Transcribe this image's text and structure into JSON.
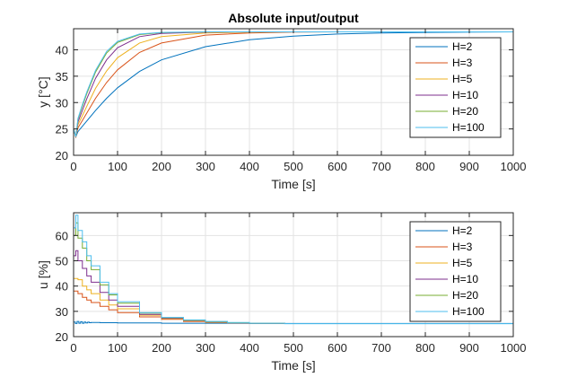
{
  "chart_data": [
    {
      "type": "line",
      "title": "Absolute input/output",
      "xlabel": "Time [s]",
      "ylabel": "y [°C]",
      "xlim": [
        0,
        1000
      ],
      "ylim": [
        20,
        44
      ],
      "xticks": [
        0,
        100,
        200,
        300,
        400,
        500,
        600,
        700,
        800,
        900,
        1000
      ],
      "yticks": [
        20,
        25,
        30,
        35,
        40
      ],
      "grid": true,
      "legend_position": "top-right",
      "series": [
        {
          "name": "H=2",
          "color": "#0072BD",
          "x": [
            0,
            5,
            10,
            20,
            30,
            50,
            75,
            100,
            150,
            200,
            300,
            400,
            500,
            600,
            700,
            800,
            900,
            1000
          ],
          "values": [
            25,
            23.5,
            24.5,
            25.5,
            26.5,
            28.5,
            30.8,
            32.8,
            35.9,
            38.1,
            40.6,
            41.9,
            42.6,
            43.0,
            43.2,
            43.3,
            43.35,
            43.4
          ]
        },
        {
          "name": "H=3",
          "color": "#D95319",
          "x": [
            0,
            5,
            10,
            20,
            30,
            50,
            75,
            100,
            150,
            200,
            300,
            400,
            500,
            600,
            1000
          ],
          "values": [
            25,
            23.5,
            25.2,
            26.6,
            28.0,
            30.8,
            33.8,
            36.2,
            39.5,
            41.3,
            42.8,
            43.2,
            43.35,
            43.4,
            43.4
          ]
        },
        {
          "name": "H=5",
          "color": "#EDB120",
          "x": [
            0,
            5,
            10,
            20,
            30,
            50,
            75,
            100,
            150,
            200,
            300,
            400,
            500,
            1000
          ],
          "values": [
            25,
            23.5,
            25.8,
            27.5,
            29.3,
            32.7,
            36.0,
            38.5,
            41.3,
            42.5,
            43.2,
            43.35,
            43.4,
            43.4
          ]
        },
        {
          "name": "H=10",
          "color": "#7E2F8E",
          "x": [
            0,
            5,
            10,
            20,
            30,
            50,
            75,
            100,
            150,
            200,
            300,
            400,
            1000
          ],
          "values": [
            25,
            23.5,
            26.3,
            28.5,
            30.7,
            34.6,
            38.1,
            40.4,
            42.5,
            43.1,
            43.35,
            43.4,
            43.4
          ]
        },
        {
          "name": "H=20",
          "color": "#77AC30",
          "x": [
            0,
            5,
            10,
            20,
            30,
            50,
            75,
            100,
            150,
            200,
            300,
            1000
          ],
          "values": [
            25,
            23.5,
            26.8,
            29.3,
            31.7,
            35.8,
            39.4,
            41.4,
            42.9,
            43.25,
            43.4,
            43.4
          ]
        },
        {
          "name": "H=100",
          "color": "#4DBEEE",
          "x": [
            0,
            5,
            10,
            20,
            30,
            50,
            75,
            100,
            150,
            200,
            300,
            1000
          ],
          "values": [
            25,
            23.5,
            27.0,
            29.6,
            32.0,
            36.1,
            39.7,
            41.6,
            43.0,
            43.3,
            43.4,
            43.4
          ]
        }
      ]
    },
    {
      "type": "line",
      "title": "",
      "xlabel": "Time [s]",
      "ylabel": "u [%]",
      "xlim": [
        0,
        1000
      ],
      "ylim": [
        20,
        69
      ],
      "xticks": [
        0,
        100,
        200,
        300,
        400,
        500,
        600,
        700,
        800,
        900,
        1000
      ],
      "yticks": [
        20,
        30,
        40,
        50,
        60
      ],
      "grid": true,
      "legend_position": "top-right",
      "series": [
        {
          "name": "H=2",
          "color": "#0072BD",
          "x": [
            0,
            4,
            8,
            12,
            16,
            20,
            24,
            28,
            32,
            36,
            40,
            60,
            100,
            200,
            400,
            1000
          ],
          "values": [
            25.8,
            25.2,
            26.0,
            25.3,
            25.9,
            25.3,
            25.8,
            25.4,
            25.7,
            25.5,
            25.6,
            25.5,
            25.4,
            25.3,
            25.2,
            25.1
          ]
        },
        {
          "name": "H=3",
          "color": "#D95319",
          "x": [
            0,
            10,
            20,
            30,
            40,
            60,
            80,
            100,
            150,
            200,
            250,
            300,
            350,
            400,
            480
          ],
          "values": [
            38,
            37,
            35.5,
            34.5,
            33.5,
            32.0,
            30.6,
            29.5,
            27.8,
            26.8,
            26.0,
            25.6,
            25.4,
            25.3,
            25.2
          ]
        },
        {
          "name": "H=5",
          "color": "#EDB120",
          "x": [
            0,
            10,
            20,
            30,
            40,
            60,
            80,
            100,
            150,
            200,
            250,
            300,
            350,
            400,
            480
          ],
          "values": [
            43,
            42.5,
            40,
            38.5,
            37,
            34.5,
            32.5,
            31.0,
            28.5,
            27.2,
            26.3,
            25.8,
            25.5,
            25.3,
            25.2
          ]
        },
        {
          "name": "H=10",
          "color": "#7E2F8E",
          "x": [
            0,
            5,
            10,
            20,
            30,
            40,
            60,
            80,
            100,
            150,
            200,
            250,
            300,
            350,
            400,
            480
          ],
          "values": [
            52,
            54,
            50,
            47,
            44,
            41.5,
            37.5,
            34.5,
            32.0,
            28.8,
            27.3,
            26.4,
            25.9,
            25.5,
            25.3,
            25.2
          ]
        },
        {
          "name": "H=20",
          "color": "#77AC30",
          "x": [
            0,
            5,
            10,
            20,
            30,
            40,
            60,
            80,
            100,
            150,
            200,
            250,
            300,
            350,
            400,
            480
          ],
          "values": [
            60,
            65,
            59,
            55,
            50,
            46.5,
            40.5,
            36.5,
            33.2,
            29.3,
            27.5,
            26.5,
            25.9,
            25.5,
            25.3,
            25.2
          ]
        },
        {
          "name": "H=100",
          "color": "#4DBEEE",
          "x": [
            0,
            5,
            10,
            20,
            30,
            40,
            60,
            80,
            100,
            150,
            200,
            250,
            300,
            350,
            400,
            480,
            1000
          ],
          "values": [
            63,
            68,
            62,
            57.5,
            52,
            48,
            41.5,
            37,
            33.8,
            29.5,
            27.6,
            26.6,
            26.0,
            25.6,
            25.3,
            25.1,
            25.0
          ]
        }
      ]
    }
  ]
}
